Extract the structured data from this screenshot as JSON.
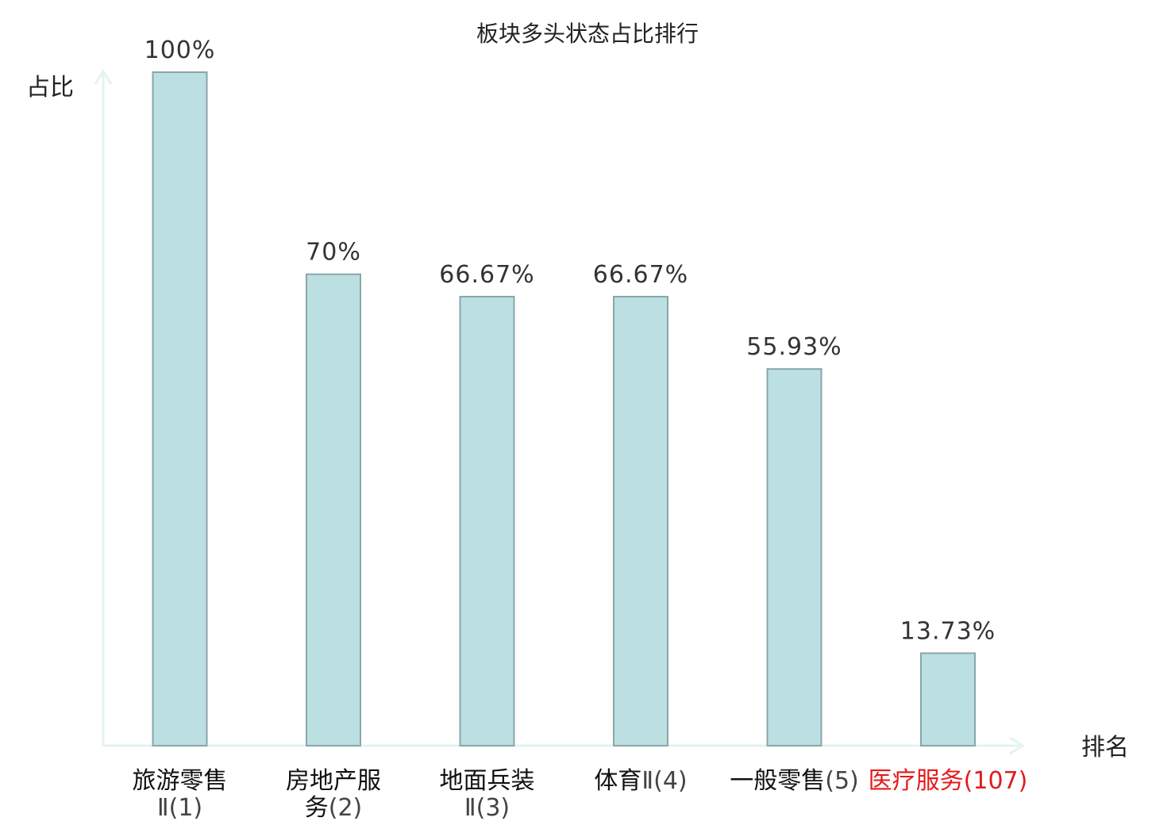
{
  "chart_data": {
    "type": "bar",
    "title": "板块多头状态占比排行",
    "ylabel": "占比",
    "xlabel": "排名",
    "ylim": [
      0,
      100
    ],
    "bar_color": "#bce0e2",
    "bar_stroke": "#8aa6aa",
    "axis_color": "#e2f3f1",
    "highlight_color": "#e41a1c",
    "categories": [
      {
        "lines": [
          {
            "name": "旅游零售",
            "rank": ""
          },
          {
            "name": "",
            "rank": "Ⅱ(1)"
          }
        ],
        "highlight": false
      },
      {
        "lines": [
          {
            "name": "房地产服",
            "rank": ""
          },
          {
            "name": "务",
            "rank": "(2)"
          }
        ],
        "highlight": false
      },
      {
        "lines": [
          {
            "name": "地面兵装",
            "rank": ""
          },
          {
            "name": "",
            "rank": "Ⅱ(3)"
          }
        ],
        "highlight": false
      },
      {
        "lines": [
          {
            "name": "体育",
            "rank": "Ⅱ(4)"
          }
        ],
        "highlight": false
      },
      {
        "lines": [
          {
            "name": "一般零售",
            "rank": "(5)"
          }
        ],
        "highlight": false
      },
      {
        "lines": [
          {
            "name": "医疗服务",
            "rank": "(107)"
          }
        ],
        "highlight": true
      }
    ],
    "values": [
      100,
      70,
      66.67,
      66.67,
      55.93,
      13.73
    ],
    "value_labels": [
      "100%",
      "70%",
      "66.67%",
      "66.67%",
      "55.93%",
      "13.73%"
    ]
  }
}
